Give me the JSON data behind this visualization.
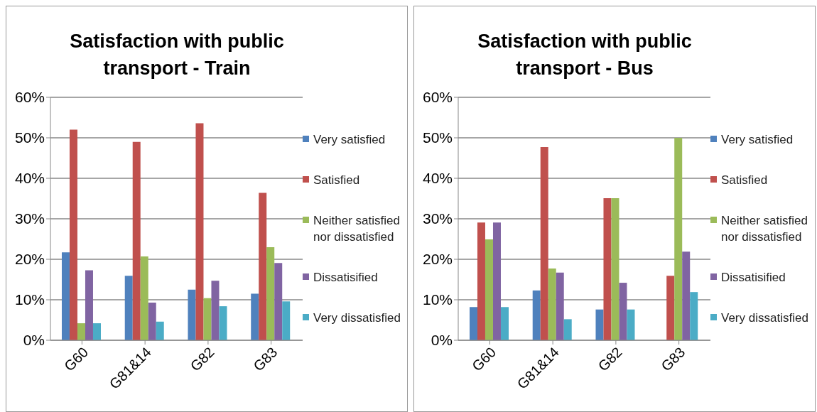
{
  "chart_data": [
    {
      "type": "bar",
      "title": "Satisfaction with public transport - Train",
      "categories": [
        "G60",
        "G81&14",
        "G82",
        "G83"
      ],
      "series": [
        {
          "name": "Very satisfied",
          "color": "#4f81bd",
          "values": [
            21.7,
            15.9,
            12.5,
            11.5
          ]
        },
        {
          "name": "Satisfied",
          "color": "#c0504d",
          "values": [
            52.0,
            49.0,
            53.6,
            36.4
          ]
        },
        {
          "name": "Neither satisfied nor dissatisfied",
          "color": "#9bbb59",
          "values": [
            4.2,
            20.7,
            10.4,
            23.0
          ]
        },
        {
          "name": "Dissatisified",
          "color": "#8064a2",
          "values": [
            17.3,
            9.3,
            14.7,
            19.1
          ]
        },
        {
          "name": "Very dissatisfied",
          "color": "#4bacc6",
          "values": [
            4.2,
            4.6,
            8.4,
            9.6
          ]
        }
      ],
      "ylim": [
        0,
        60
      ],
      "yticks": [
        {
          "value": 0,
          "label": "0%"
        },
        {
          "value": 10,
          "label": "10%"
        },
        {
          "value": 20,
          "label": "20%"
        },
        {
          "value": 30,
          "label": "30%"
        },
        {
          "value": 40,
          "label": "40%"
        },
        {
          "value": 50,
          "label": "50%"
        },
        {
          "value": 60,
          "label": "60%"
        }
      ],
      "grid": "y",
      "legend": "right"
    },
    {
      "type": "bar",
      "title": "Satisfaction with public transport - Bus",
      "categories": [
        "G60",
        "G81&14",
        "G82",
        "G83"
      ],
      "series": [
        {
          "name": "Very satisfied",
          "color": "#4f81bd",
          "values": [
            8.2,
            12.3,
            7.6,
            0
          ]
        },
        {
          "name": "Satisfied",
          "color": "#c0504d",
          "values": [
            29.1,
            47.7,
            35.1,
            15.9
          ]
        },
        {
          "name": "Neither satisfied nor dissatisfied",
          "color": "#9bbb59",
          "values": [
            24.9,
            17.7,
            35.1,
            50
          ]
        },
        {
          "name": "Dissatisified",
          "color": "#8064a2",
          "values": [
            29.1,
            16.7,
            14.2,
            21.9
          ]
        },
        {
          "name": "Very dissatisfied",
          "color": "#4bacc6",
          "values": [
            8.2,
            5.2,
            7.6,
            11.9
          ]
        }
      ],
      "ylim": [
        0,
        60
      ],
      "yticks": [
        {
          "value": 0,
          "label": "0%"
        },
        {
          "value": 10,
          "label": "10%"
        },
        {
          "value": 20,
          "label": "20%"
        },
        {
          "value": 30,
          "label": "30%"
        },
        {
          "value": 40,
          "label": "40%"
        },
        {
          "value": 50,
          "label": "50%"
        },
        {
          "value": 60,
          "label": "60%"
        }
      ],
      "grid": "y",
      "legend": "right"
    }
  ]
}
